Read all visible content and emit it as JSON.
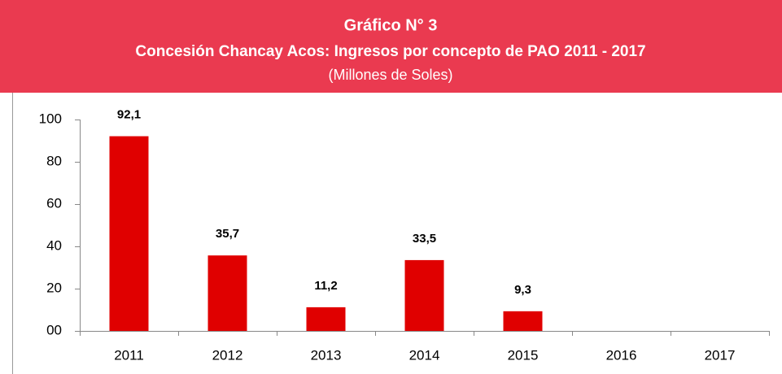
{
  "chart_data": {
    "type": "bar",
    "title": "Gráfico N° 3",
    "subtitle": "Concesión Chancay Acos: Ingresos por concepto de PAO 2011 - 2017",
    "unit_note": "(Millones de Soles)",
    "categories": [
      "2011",
      "2012",
      "2013",
      "2014",
      "2015",
      "2016",
      "2017"
    ],
    "values": [
      92.1,
      35.7,
      11.2,
      33.5,
      9.3,
      null,
      null
    ],
    "value_labels": [
      "92,1",
      "35,7",
      "11,2",
      "33,5",
      "9,3",
      null,
      null
    ],
    "color": "#e00000",
    "ylim": [
      0,
      100
    ],
    "yticks": [
      {
        "value": 0,
        "label": "00"
      },
      20,
      40,
      60,
      80,
      100
    ],
    "grid": false
  }
}
